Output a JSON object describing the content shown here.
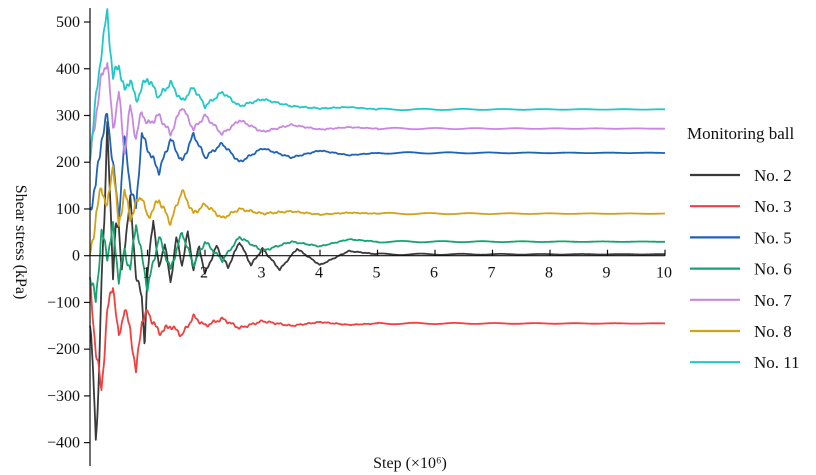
{
  "chart_data": {
    "type": "line",
    "title": "",
    "xlabel": "Step (×10⁶)",
    "ylabel": "Shear stress (kPa)",
    "xlim": [
      0,
      10
    ],
    "ylim": [
      -450,
      530
    ],
    "x_ticks": [
      1,
      2,
      3,
      4,
      5,
      6,
      7,
      8,
      9,
      10
    ],
    "y_ticks": [
      500,
      400,
      300,
      200,
      100,
      0,
      -100,
      -200,
      -300,
      -400
    ],
    "grid": false,
    "legend_title": "Monitoring ball",
    "legend_position": "right",
    "series": [
      {
        "name": "No. 2",
        "color": "#3a3a3a",
        "steady": 3,
        "x": [
          0,
          0.05,
          0.1,
          0.15,
          0.2,
          0.25,
          0.3,
          0.35,
          0.4,
          0.45,
          0.5,
          0.55,
          0.6,
          0.7,
          0.8,
          0.9,
          0.95,
          1.0,
          1.1,
          1.2,
          1.3,
          1.4,
          1.5,
          1.6,
          1.7,
          1.8,
          1.9,
          2.0,
          2.2,
          2.4,
          2.6,
          2.8,
          3.0,
          3.3,
          3.6,
          4.0,
          4.5,
          5.0
        ],
        "values": [
          -150,
          -240,
          -390,
          -280,
          -60,
          80,
          290,
          120,
          -50,
          80,
          60,
          -40,
          20,
          120,
          -40,
          -90,
          -185,
          -40,
          80,
          -30,
          30,
          -60,
          40,
          -20,
          50,
          -30,
          20,
          -40,
          20,
          -25,
          30,
          -20,
          15,
          -30,
          15,
          -20,
          10,
          3
        ]
      },
      {
        "name": "No. 3",
        "color": "#f04040",
        "steady": -145,
        "x": [
          0,
          0.1,
          0.2,
          0.3,
          0.4,
          0.5,
          0.6,
          0.7,
          0.8,
          0.9,
          1.0,
          1.2,
          1.4,
          1.6,
          1.8,
          2.0,
          2.3,
          2.6,
          3.0,
          3.5,
          4.0,
          4.5,
          5.0
        ],
        "values": [
          -60,
          -200,
          -290,
          -120,
          -60,
          -180,
          -110,
          -160,
          -250,
          -140,
          -120,
          -165,
          -150,
          -170,
          -130,
          -150,
          -135,
          -155,
          -140,
          -150,
          -142,
          -148,
          -145
        ]
      },
      {
        "name": "No. 5",
        "color": "#1e63b8",
        "steady": 220,
        "x": [
          0,
          0.1,
          0.2,
          0.3,
          0.4,
          0.5,
          0.6,
          0.7,
          0.8,
          0.9,
          1.0,
          1.2,
          1.4,
          1.6,
          1.8,
          2.0,
          2.3,
          2.6,
          3.0,
          3.5,
          4.0,
          4.5,
          5.0
        ],
        "values": [
          100,
          150,
          250,
          300,
          200,
          80,
          250,
          150,
          100,
          260,
          230,
          180,
          250,
          200,
          260,
          210,
          240,
          200,
          230,
          210,
          225,
          215,
          220
        ]
      },
      {
        "name": "No. 6",
        "color": "#17a26f",
        "steady": 30,
        "x": [
          0,
          0.1,
          0.2,
          0.3,
          0.4,
          0.5,
          0.6,
          0.7,
          0.8,
          0.9,
          1.0,
          1.2,
          1.4,
          1.6,
          1.8,
          2.0,
          2.3,
          2.6,
          3.0,
          3.5,
          4.0,
          4.5,
          5.0
        ],
        "values": [
          -40,
          -100,
          50,
          0,
          60,
          -50,
          10,
          -30,
          70,
          0,
          -70,
          40,
          -30,
          50,
          -20,
          30,
          -10,
          40,
          10,
          30,
          20,
          35,
          30
        ]
      },
      {
        "name": "No. 7",
        "color": "#c888e0",
        "steady": 272,
        "x": [
          0,
          0.1,
          0.2,
          0.3,
          0.4,
          0.5,
          0.6,
          0.7,
          0.8,
          0.9,
          1.0,
          1.2,
          1.4,
          1.6,
          1.8,
          2.0,
          2.3,
          2.6,
          3.0,
          3.5,
          4.0,
          4.5,
          5.0
        ],
        "values": [
          200,
          300,
          380,
          420,
          270,
          350,
          220,
          320,
          250,
          310,
          280,
          300,
          260,
          320,
          270,
          300,
          260,
          290,
          265,
          280,
          270,
          275,
          272
        ]
      },
      {
        "name": "No. 8",
        "color": "#d4a217",
        "steady": 90,
        "x": [
          0,
          0.1,
          0.2,
          0.3,
          0.4,
          0.5,
          0.6,
          0.7,
          0.8,
          0.9,
          1.0,
          1.2,
          1.4,
          1.6,
          1.8,
          2.0,
          2.3,
          2.6,
          3.0,
          3.5,
          4.0,
          4.5,
          5.0
        ],
        "values": [
          0,
          80,
          150,
          100,
          200,
          60,
          140,
          80,
          110,
          130,
          80,
          120,
          70,
          140,
          90,
          110,
          80,
          100,
          90,
          95,
          88,
          92,
          90
        ]
      },
      {
        "name": "No. 11",
        "color": "#22c8c8",
        "steady": 313,
        "x": [
          0,
          0.1,
          0.2,
          0.3,
          0.4,
          0.5,
          0.6,
          0.7,
          0.8,
          0.9,
          1.0,
          1.2,
          1.4,
          1.6,
          1.8,
          2.0,
          2.3,
          2.6,
          3.0,
          3.5,
          4.0,
          4.5,
          5.0
        ],
        "values": [
          220,
          330,
          440,
          520,
          380,
          410,
          350,
          380,
          330,
          360,
          380,
          340,
          370,
          330,
          360,
          320,
          350,
          320,
          335,
          320,
          315,
          318,
          313
        ]
      }
    ]
  }
}
